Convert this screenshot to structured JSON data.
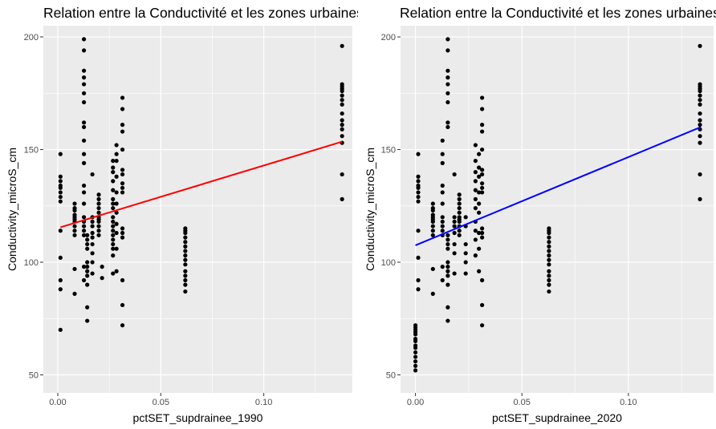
{
  "chart_data": [
    {
      "type": "scatter",
      "title": "Relation entre la Conductivité et les zones urbaines",
      "xlabel": "pctSET_supdrainee_1990",
      "ylabel": "Conductivity_microS_cm",
      "xlim": [
        -0.007,
        0.143
      ],
      "ylim": [
        42,
        205
      ],
      "xticks": [
        0.0,
        0.05,
        0.1
      ],
      "xtick_labels": [
        "0.00",
        "0.05",
        "0.10"
      ],
      "yticks": [
        50,
        100,
        150,
        200
      ],
      "ytick_labels": [
        "50",
        "100",
        "150",
        "200"
      ],
      "grid": true,
      "trend_color": "#ff0000",
      "trend": {
        "x0": 0.0013,
        "y0": 115.5,
        "x1": 0.138,
        "y1": 153.5
      },
      "points": [
        [
          0.0013,
          70
        ],
        [
          0.0013,
          88
        ],
        [
          0.0013,
          92
        ],
        [
          0.0013,
          102
        ],
        [
          0.0013,
          114
        ],
        [
          0.0013,
          127
        ],
        [
          0.0013,
          129
        ],
        [
          0.0013,
          131
        ],
        [
          0.0013,
          133
        ],
        [
          0.0013,
          134
        ],
        [
          0.0013,
          136
        ],
        [
          0.0013,
          138
        ],
        [
          0.0013,
          148
        ],
        [
          0.0082,
          86
        ],
        [
          0.0082,
          97
        ],
        [
          0.0082,
          112
        ],
        [
          0.0082,
          114
        ],
        [
          0.0082,
          116
        ],
        [
          0.0082,
          118
        ],
        [
          0.0082,
          119
        ],
        [
          0.0082,
          120
        ],
        [
          0.0082,
          121
        ],
        [
          0.0082,
          123
        ],
        [
          0.0082,
          124
        ],
        [
          0.0082,
          126
        ],
        [
          0.0127,
          92
        ],
        [
          0.0127,
          98
        ],
        [
          0.0127,
          112
        ],
        [
          0.0127,
          114
        ],
        [
          0.0127,
          116
        ],
        [
          0.0127,
          118
        ],
        [
          0.0127,
          120
        ],
        [
          0.0127,
          126
        ],
        [
          0.0127,
          131
        ],
        [
          0.0127,
          134
        ],
        [
          0.0127,
          144
        ],
        [
          0.0127,
          148
        ],
        [
          0.0127,
          154
        ],
        [
          0.0127,
          160
        ],
        [
          0.0127,
          162
        ],
        [
          0.0127,
          171
        ],
        [
          0.0127,
          175
        ],
        [
          0.0127,
          179
        ],
        [
          0.0127,
          182
        ],
        [
          0.0127,
          185
        ],
        [
          0.0127,
          194
        ],
        [
          0.0127,
          199
        ],
        [
          0.0143,
          74
        ],
        [
          0.0143,
          80
        ],
        [
          0.0143,
          90
        ],
        [
          0.0143,
          94
        ],
        [
          0.0143,
          96
        ],
        [
          0.0143,
          98
        ],
        [
          0.0143,
          100
        ],
        [
          0.0143,
          106
        ],
        [
          0.0143,
          108
        ],
        [
          0.0143,
          110
        ],
        [
          0.0143,
          112
        ],
        [
          0.0168,
          95
        ],
        [
          0.0168,
          100
        ],
        [
          0.0168,
          104
        ],
        [
          0.0168,
          108
        ],
        [
          0.0168,
          111
        ],
        [
          0.0168,
          113
        ],
        [
          0.0168,
          116
        ],
        [
          0.0168,
          118
        ],
        [
          0.0168,
          120
        ],
        [
          0.0168,
          139
        ],
        [
          0.0199,
          112
        ],
        [
          0.0199,
          114
        ],
        [
          0.0199,
          116
        ],
        [
          0.0199,
          118
        ],
        [
          0.0199,
          119
        ],
        [
          0.0199,
          120
        ],
        [
          0.0199,
          122
        ],
        [
          0.0199,
          124
        ],
        [
          0.0199,
          126
        ],
        [
          0.0199,
          128
        ],
        [
          0.0199,
          130
        ],
        [
          0.0215,
          93
        ],
        [
          0.0215,
          98
        ],
        [
          0.0268,
          95
        ],
        [
          0.0268,
          103
        ],
        [
          0.0268,
          106
        ],
        [
          0.0268,
          108
        ],
        [
          0.0268,
          110
        ],
        [
          0.0268,
          112
        ],
        [
          0.0268,
          114
        ],
        [
          0.0268,
          116
        ],
        [
          0.0268,
          118
        ],
        [
          0.0268,
          120
        ],
        [
          0.0268,
          124
        ],
        [
          0.0268,
          126
        ],
        [
          0.0268,
          128
        ],
        [
          0.0268,
          132
        ],
        [
          0.0268,
          136
        ],
        [
          0.0268,
          140
        ],
        [
          0.0268,
          142
        ],
        [
          0.0268,
          145
        ],
        [
          0.0285,
          96
        ],
        [
          0.0285,
          106
        ],
        [
          0.0285,
          113
        ],
        [
          0.0285,
          117
        ],
        [
          0.0285,
          122
        ],
        [
          0.0285,
          126
        ],
        [
          0.0285,
          131
        ],
        [
          0.0285,
          138
        ],
        [
          0.0285,
          145
        ],
        [
          0.0285,
          148
        ],
        [
          0.0285,
          152
        ],
        [
          0.0314,
          72
        ],
        [
          0.0314,
          81
        ],
        [
          0.0314,
          92
        ],
        [
          0.0314,
          111
        ],
        [
          0.0314,
          113
        ],
        [
          0.0314,
          115
        ],
        [
          0.0314,
          131
        ],
        [
          0.0314,
          133
        ],
        [
          0.0314,
          135
        ],
        [
          0.0314,
          139
        ],
        [
          0.0314,
          141
        ],
        [
          0.0314,
          150
        ],
        [
          0.0314,
          158
        ],
        [
          0.0314,
          161
        ],
        [
          0.0314,
          168
        ],
        [
          0.0314,
          173
        ],
        [
          0.0619,
          87
        ],
        [
          0.0619,
          90
        ],
        [
          0.0619,
          92
        ],
        [
          0.0619,
          94
        ],
        [
          0.0619,
          96
        ],
        [
          0.0619,
          99
        ],
        [
          0.0619,
          101
        ],
        [
          0.0619,
          103
        ],
        [
          0.0619,
          105
        ],
        [
          0.0619,
          107
        ],
        [
          0.0619,
          109
        ],
        [
          0.0619,
          111
        ],
        [
          0.0619,
          113
        ],
        [
          0.0619,
          114
        ],
        [
          0.0619,
          115
        ],
        [
          0.138,
          128
        ],
        [
          0.138,
          139
        ],
        [
          0.138,
          153
        ],
        [
          0.138,
          156
        ],
        [
          0.138,
          159
        ],
        [
          0.138,
          161
        ],
        [
          0.138,
          163
        ],
        [
          0.138,
          166
        ],
        [
          0.138,
          170
        ],
        [
          0.138,
          172
        ],
        [
          0.138,
          174
        ],
        [
          0.138,
          176
        ],
        [
          0.138,
          177
        ],
        [
          0.138,
          178
        ],
        [
          0.138,
          179
        ],
        [
          0.138,
          196
        ]
      ]
    },
    {
      "type": "scatter",
      "title": "Relation entre la Conductivité et les zones urbaines",
      "xlabel": "pctSET_supdrainee_2020",
      "ylabel": "Conductivity_microS_cm",
      "xlim": [
        -0.007,
        0.14
      ],
      "ylim": [
        42,
        205
      ],
      "xticks": [
        0.0,
        0.05,
        0.1
      ],
      "xtick_labels": [
        "0.00",
        "0.05",
        "0.10"
      ],
      "yticks": [
        50,
        100,
        150,
        200
      ],
      "ytick_labels": [
        "50",
        "100",
        "150",
        "200"
      ],
      "grid": true,
      "trend_color": "#0000ff",
      "trend": {
        "x0": 0.0,
        "y0": 107.5,
        "x1": 0.134,
        "y1": 160
      },
      "points": [
        [
          0.0,
          52
        ],
        [
          0.0,
          54
        ],
        [
          0.0,
          56
        ],
        [
          0.0,
          58
        ],
        [
          0.0,
          60
        ],
        [
          0.0,
          62
        ],
        [
          0.0,
          63
        ],
        [
          0.0,
          65
        ],
        [
          0.0,
          66
        ],
        [
          0.0,
          68
        ],
        [
          0.0,
          69
        ],
        [
          0.0,
          70
        ],
        [
          0.0,
          71
        ],
        [
          0.0,
          72
        ],
        [
          0.0013,
          88
        ],
        [
          0.0013,
          92
        ],
        [
          0.0013,
          102
        ],
        [
          0.0013,
          114
        ],
        [
          0.0013,
          127
        ],
        [
          0.0013,
          129
        ],
        [
          0.0013,
          131
        ],
        [
          0.0013,
          133
        ],
        [
          0.0013,
          134
        ],
        [
          0.0013,
          136
        ],
        [
          0.0013,
          138
        ],
        [
          0.0013,
          148
        ],
        [
          0.0082,
          86
        ],
        [
          0.0082,
          97
        ],
        [
          0.0082,
          112
        ],
        [
          0.0082,
          114
        ],
        [
          0.0082,
          116
        ],
        [
          0.0082,
          118
        ],
        [
          0.0082,
          119
        ],
        [
          0.0082,
          120
        ],
        [
          0.0082,
          121
        ],
        [
          0.0082,
          123
        ],
        [
          0.0082,
          124
        ],
        [
          0.0082,
          126
        ],
        [
          0.0127,
          92
        ],
        [
          0.0127,
          98
        ],
        [
          0.0127,
          112
        ],
        [
          0.0127,
          114
        ],
        [
          0.0127,
          116
        ],
        [
          0.0127,
          118
        ],
        [
          0.0127,
          120
        ],
        [
          0.0127,
          126
        ],
        [
          0.0127,
          131
        ],
        [
          0.0127,
          134
        ],
        [
          0.0127,
          144
        ],
        [
          0.0127,
          148
        ],
        [
          0.0127,
          154
        ],
        [
          0.0152,
          74
        ],
        [
          0.0152,
          80
        ],
        [
          0.0152,
          90
        ],
        [
          0.0152,
          94
        ],
        [
          0.0152,
          96
        ],
        [
          0.0152,
          98
        ],
        [
          0.0152,
          100
        ],
        [
          0.0152,
          106
        ],
        [
          0.0152,
          108
        ],
        [
          0.0152,
          110
        ],
        [
          0.0152,
          112
        ],
        [
          0.0152,
          160
        ],
        [
          0.0152,
          162
        ],
        [
          0.0152,
          171
        ],
        [
          0.0152,
          175
        ],
        [
          0.0152,
          179
        ],
        [
          0.0152,
          182
        ],
        [
          0.0152,
          185
        ],
        [
          0.0152,
          194
        ],
        [
          0.0152,
          199
        ],
        [
          0.0183,
          95
        ],
        [
          0.0183,
          104
        ],
        [
          0.0183,
          108
        ],
        [
          0.0183,
          113
        ],
        [
          0.0183,
          116
        ],
        [
          0.0183,
          118
        ],
        [
          0.0183,
          120
        ],
        [
          0.0183,
          139
        ],
        [
          0.0206,
          112
        ],
        [
          0.0206,
          114
        ],
        [
          0.0206,
          116
        ],
        [
          0.0206,
          118
        ],
        [
          0.0206,
          119
        ],
        [
          0.0206,
          120
        ],
        [
          0.0206,
          122
        ],
        [
          0.0206,
          124
        ],
        [
          0.0206,
          126
        ],
        [
          0.0206,
          128
        ],
        [
          0.0206,
          130
        ],
        [
          0.0236,
          95
        ],
        [
          0.0236,
          100
        ],
        [
          0.0236,
          104
        ],
        [
          0.0236,
          108
        ],
        [
          0.0236,
          116
        ],
        [
          0.0236,
          120
        ],
        [
          0.0282,
          103
        ],
        [
          0.0282,
          110
        ],
        [
          0.0282,
          114
        ],
        [
          0.0282,
          118
        ],
        [
          0.0282,
          124
        ],
        [
          0.0282,
          128
        ],
        [
          0.0282,
          132
        ],
        [
          0.0282,
          136
        ],
        [
          0.0282,
          140
        ],
        [
          0.0282,
          145
        ],
        [
          0.0282,
          152
        ],
        [
          0.0298,
          96
        ],
        [
          0.0298,
          106
        ],
        [
          0.0298,
          113
        ],
        [
          0.0298,
          122
        ],
        [
          0.0298,
          126
        ],
        [
          0.0298,
          131
        ],
        [
          0.0298,
          138
        ],
        [
          0.0298,
          142
        ],
        [
          0.0298,
          148
        ],
        [
          0.0313,
          72
        ],
        [
          0.0313,
          81
        ],
        [
          0.0313,
          92
        ],
        [
          0.0313,
          111
        ],
        [
          0.0313,
          113
        ],
        [
          0.0313,
          115
        ],
        [
          0.0313,
          131
        ],
        [
          0.0313,
          133
        ],
        [
          0.0313,
          135
        ],
        [
          0.0313,
          139
        ],
        [
          0.0313,
          141
        ],
        [
          0.0313,
          150
        ],
        [
          0.0313,
          158
        ],
        [
          0.0313,
          161
        ],
        [
          0.0313,
          168
        ],
        [
          0.0313,
          173
        ],
        [
          0.0627,
          87
        ],
        [
          0.0627,
          90
        ],
        [
          0.0627,
          92
        ],
        [
          0.0627,
          94
        ],
        [
          0.0627,
          96
        ],
        [
          0.0627,
          99
        ],
        [
          0.0627,
          101
        ],
        [
          0.0627,
          103
        ],
        [
          0.0627,
          105
        ],
        [
          0.0627,
          107
        ],
        [
          0.0627,
          109
        ],
        [
          0.0627,
          111
        ],
        [
          0.0627,
          113
        ],
        [
          0.0627,
          114
        ],
        [
          0.0627,
          115
        ],
        [
          0.1336,
          128
        ],
        [
          0.1336,
          139
        ],
        [
          0.1336,
          153
        ],
        [
          0.1336,
          156
        ],
        [
          0.1336,
          159
        ],
        [
          0.1336,
          161
        ],
        [
          0.1336,
          163
        ],
        [
          0.1336,
          166
        ],
        [
          0.1336,
          170
        ],
        [
          0.1336,
          172
        ],
        [
          0.1336,
          174
        ],
        [
          0.1336,
          176
        ],
        [
          0.1336,
          177
        ],
        [
          0.1336,
          178
        ],
        [
          0.1336,
          179
        ],
        [
          0.1336,
          196
        ]
      ]
    }
  ]
}
